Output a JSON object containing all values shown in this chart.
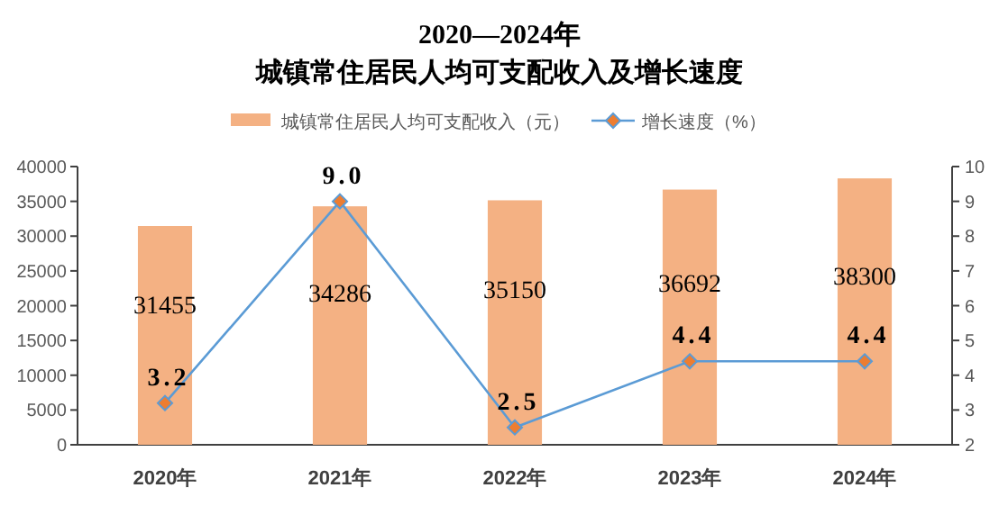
{
  "chart_data": {
    "type": "bar",
    "title": "2020—2024年",
    "subtitle": "城镇常住居民人均可支配收入及增长速度",
    "categories": [
      "2020年",
      "2021年",
      "2022年",
      "2023年",
      "2024年"
    ],
    "series": [
      {
        "name": "城镇常住居民人均可支配收入（元）",
        "color": "#f4b183",
        "values": [
          31455,
          34286,
          35150,
          36692,
          38300
        ],
        "value_labels": [
          "31455",
          "34286",
          "35150",
          "36692",
          "38300"
        ]
      },
      {
        "name": "增长速度（%）",
        "type": "line",
        "axis": "y2",
        "color": "#5b9bd5",
        "marker": "diamond",
        "values": [
          3.2,
          9.0,
          2.5,
          4.4,
          4.4
        ],
        "value_labels": [
          "3.2",
          "9.0",
          "2.5",
          "4.4",
          "4.4"
        ]
      }
    ],
    "ylim": [
      0,
      40000
    ],
    "yticks": [
      0,
      5000,
      10000,
      15000,
      20000,
      25000,
      30000,
      35000,
      40000
    ],
    "y2lim": [
      2,
      10
    ],
    "y2ticks": [
      2,
      3,
      4,
      5,
      6,
      7,
      8,
      9,
      10
    ],
    "legend": "top",
    "grid": false
  }
}
